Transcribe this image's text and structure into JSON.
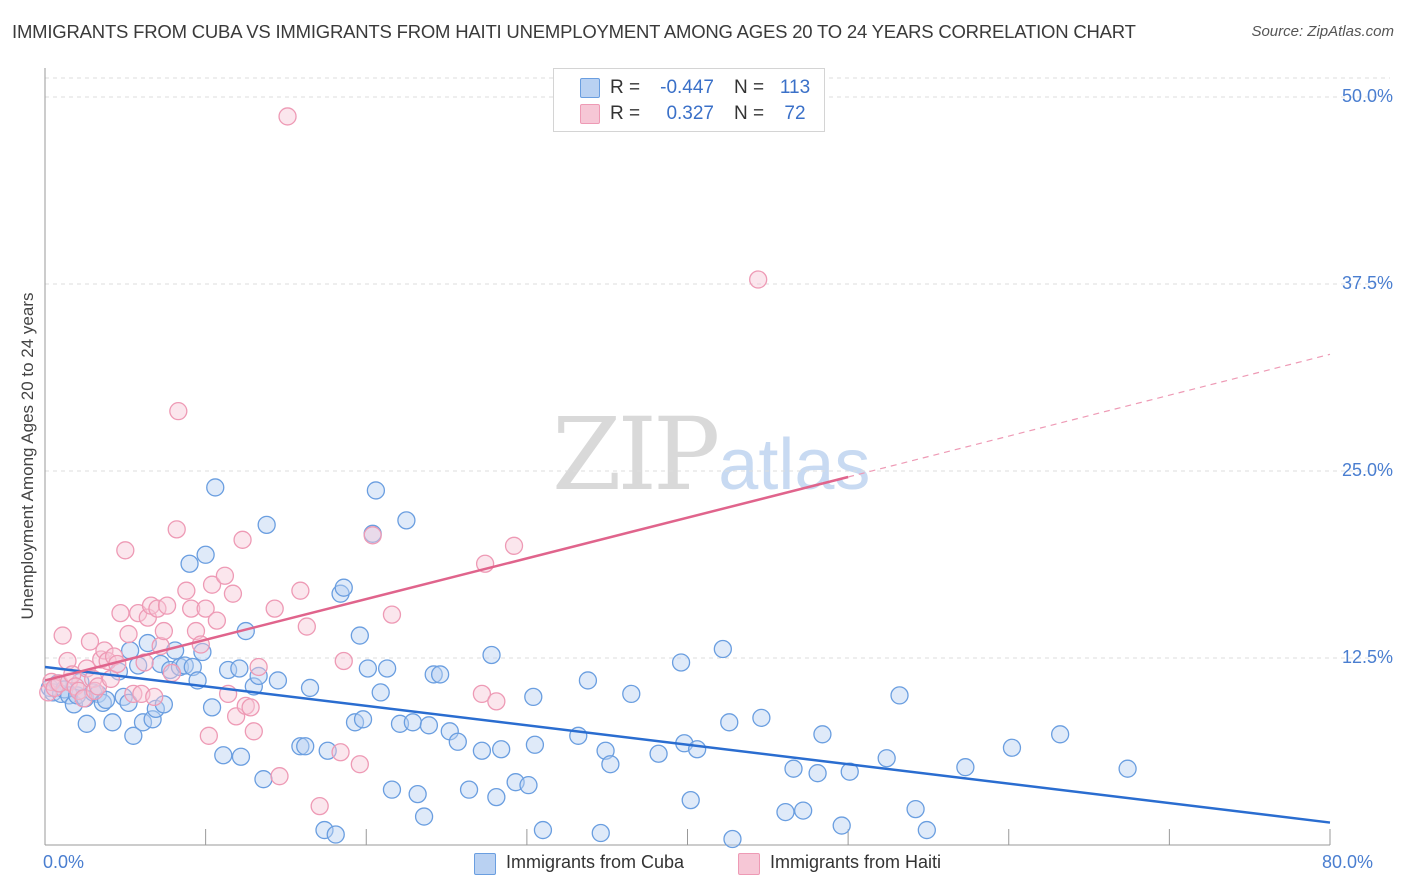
{
  "title": "IMMIGRANTS FROM CUBA VS IMMIGRANTS FROM HAITI UNEMPLOYMENT AMONG AGES 20 TO 24 YEARS CORRELATION CHART",
  "source": "Source: ZipAtlas.com",
  "watermark": {
    "zip": "ZIP",
    "atlas": "atlas"
  },
  "legend": {
    "rows": [
      {
        "r_label": "R =",
        "r_value": "-0.447",
        "n_label": "N =",
        "n_value": "113"
      },
      {
        "r_label": "R =",
        "r_value": "0.327",
        "n_label": "N =",
        "n_value": "72"
      }
    ]
  },
  "colors": {
    "cuba": "#6a9ee0",
    "cuba_fill": "#b9d1f2",
    "cuba_line": "#2a6dd0",
    "haiti": "#ee9ab5",
    "haiti_fill": "#f6c7d6",
    "haiti_line": "#e0648c",
    "tick_text": "#4a7ed0"
  },
  "chart_data": {
    "type": "scatter",
    "title": "IMMIGRANTS FROM CUBA VS IMMIGRANTS FROM HAITI UNEMPLOYMENT AMONG AGES 20 TO 24 YEARS CORRELATION CHART",
    "xlabel": "",
    "ylabel": "Unemployment Among Ages 20 to 24 years",
    "xlim": [
      0,
      80
    ],
    "ylim": [
      0,
      50
    ],
    "x_tick_labels": [
      "0.0%",
      "80.0%"
    ],
    "y_ticks": [
      12.5,
      25.0,
      37.5,
      50.0
    ],
    "y_tick_labels": [
      "12.5%",
      "25.0%",
      "37.5%",
      "50.0%"
    ],
    "grid": true,
    "legend_position": "top-center",
    "series": [
      {
        "name": "Immigrants from Cuba",
        "r": -0.447,
        "n": 113,
        "trend": {
          "x0": 0,
          "y0": 11.9,
          "x1": 80,
          "y1": 1.5
        },
        "points": [
          [
            0.3,
            10.5
          ],
          [
            0.5,
            10.2
          ],
          [
            0.8,
            10.8
          ],
          [
            1.0,
            10.1
          ],
          [
            1.2,
            10.4
          ],
          [
            1.5,
            10.0
          ],
          [
            1.8,
            9.4
          ],
          [
            2.0,
            10.0
          ],
          [
            2.2,
            10.9
          ],
          [
            2.5,
            9.8
          ],
          [
            2.6,
            8.1
          ],
          [
            3.0,
            10.2
          ],
          [
            3.3,
            10.1
          ],
          [
            3.6,
            9.5
          ],
          [
            3.8,
            9.7
          ],
          [
            4.2,
            8.2
          ],
          [
            4.6,
            11.6
          ],
          [
            4.9,
            9.9
          ],
          [
            5.2,
            9.5
          ],
          [
            5.3,
            13.0
          ],
          [
            5.5,
            7.3
          ],
          [
            5.8,
            12.0
          ],
          [
            6.1,
            8.2
          ],
          [
            6.4,
            13.5
          ],
          [
            6.7,
            8.4
          ],
          [
            6.9,
            9.1
          ],
          [
            7.2,
            12.1
          ],
          [
            7.4,
            9.4
          ],
          [
            7.8,
            11.7
          ],
          [
            8.1,
            13.0
          ],
          [
            8.4,
            11.9
          ],
          [
            8.7,
            12.0
          ],
          [
            9.0,
            18.8
          ],
          [
            9.2,
            11.9
          ],
          [
            9.5,
            11.0
          ],
          [
            9.8,
            12.9
          ],
          [
            10.0,
            19.4
          ],
          [
            10.4,
            9.2
          ],
          [
            10.6,
            23.9
          ],
          [
            11.1,
            6.0
          ],
          [
            11.4,
            11.7
          ],
          [
            12.1,
            11.8
          ],
          [
            12.2,
            5.9
          ],
          [
            12.5,
            14.3
          ],
          [
            13.0,
            10.6
          ],
          [
            13.3,
            11.3
          ],
          [
            13.6,
            4.4
          ],
          [
            13.8,
            21.4
          ],
          [
            14.5,
            11.0
          ],
          [
            15.9,
            6.6
          ],
          [
            16.2,
            6.6
          ],
          [
            16.5,
            10.5
          ],
          [
            17.4,
            1.0
          ],
          [
            17.6,
            6.3
          ],
          [
            18.1,
            0.7
          ],
          [
            18.4,
            16.8
          ],
          [
            18.6,
            17.2
          ],
          [
            19.3,
            8.2
          ],
          [
            19.6,
            14.0
          ],
          [
            19.8,
            8.4
          ],
          [
            20.1,
            11.8
          ],
          [
            20.4,
            20.8
          ],
          [
            20.6,
            23.7
          ],
          [
            20.9,
            10.2
          ],
          [
            21.3,
            11.8
          ],
          [
            21.6,
            3.7
          ],
          [
            22.1,
            8.1
          ],
          [
            22.5,
            21.7
          ],
          [
            22.9,
            8.2
          ],
          [
            23.2,
            3.4
          ],
          [
            23.6,
            1.9
          ],
          [
            23.9,
            8.0
          ],
          [
            24.2,
            11.4
          ],
          [
            24.6,
            11.4
          ],
          [
            25.2,
            7.6
          ],
          [
            25.7,
            6.9
          ],
          [
            26.4,
            3.7
          ],
          [
            27.2,
            6.3
          ],
          [
            27.8,
            12.7
          ],
          [
            28.1,
            3.2
          ],
          [
            28.4,
            6.4
          ],
          [
            29.3,
            4.2
          ],
          [
            30.1,
            4.0
          ],
          [
            30.4,
            9.9
          ],
          [
            30.5,
            6.7
          ],
          [
            31.0,
            1.0
          ],
          [
            33.2,
            7.3
          ],
          [
            33.8,
            11.0
          ],
          [
            34.6,
            0.8
          ],
          [
            34.9,
            6.3
          ],
          [
            35.2,
            5.4
          ],
          [
            36.5,
            10.1
          ],
          [
            38.2,
            6.1
          ],
          [
            39.6,
            12.2
          ],
          [
            39.8,
            6.8
          ],
          [
            40.2,
            3.0
          ],
          [
            40.6,
            6.4
          ],
          [
            42.2,
            13.1
          ],
          [
            42.6,
            8.2
          ],
          [
            42.8,
            0.4
          ],
          [
            44.6,
            8.5
          ],
          [
            46.1,
            2.2
          ],
          [
            46.6,
            5.1
          ],
          [
            47.2,
            2.3
          ],
          [
            48.1,
            4.8
          ],
          [
            48.4,
            7.4
          ],
          [
            49.6,
            1.3
          ],
          [
            50.1,
            4.9
          ],
          [
            52.4,
            5.8
          ],
          [
            53.2,
            10.0
          ],
          [
            54.2,
            2.4
          ],
          [
            54.9,
            1.0
          ],
          [
            57.3,
            5.2
          ],
          [
            60.2,
            6.5
          ],
          [
            63.2,
            7.4
          ],
          [
            67.4,
            5.1
          ]
        ]
      },
      {
        "name": "Immigrants from Haiti",
        "r": 0.327,
        "n": 72,
        "trend_solid": {
          "x0": 0,
          "y0": 11.0,
          "x1": 50,
          "y1": 24.6
        },
        "trend_dashed": {
          "x0": 50,
          "y0": 24.6,
          "x1": 80,
          "y1": 32.8
        },
        "points": [
          [
            0.2,
            10.2
          ],
          [
            0.4,
            10.9
          ],
          [
            0.6,
            10.5
          ],
          [
            0.9,
            10.8
          ],
          [
            1.1,
            14.0
          ],
          [
            1.4,
            12.3
          ],
          [
            1.5,
            10.9
          ],
          [
            1.7,
            11.4
          ],
          [
            1.9,
            10.6
          ],
          [
            2.1,
            10.3
          ],
          [
            2.4,
            9.8
          ],
          [
            2.6,
            11.8
          ],
          [
            2.8,
            13.6
          ],
          [
            3.0,
            11.1
          ],
          [
            3.1,
            10.3
          ],
          [
            3.3,
            10.6
          ],
          [
            3.5,
            12.4
          ],
          [
            3.7,
            13.0
          ],
          [
            3.9,
            12.3
          ],
          [
            4.1,
            11.1
          ],
          [
            4.3,
            12.6
          ],
          [
            4.5,
            12.1
          ],
          [
            4.7,
            15.5
          ],
          [
            5.0,
            19.7
          ],
          [
            5.2,
            14.1
          ],
          [
            5.5,
            10.1
          ],
          [
            5.8,
            15.5
          ],
          [
            6.0,
            10.1
          ],
          [
            6.2,
            12.2
          ],
          [
            6.4,
            15.2
          ],
          [
            6.6,
            16.0
          ],
          [
            6.8,
            9.9
          ],
          [
            7.0,
            15.8
          ],
          [
            7.2,
            13.3
          ],
          [
            7.4,
            14.3
          ],
          [
            7.6,
            16.0
          ],
          [
            7.9,
            11.5
          ],
          [
            8.2,
            21.1
          ],
          [
            8.3,
            29.0
          ],
          [
            8.8,
            17.0
          ],
          [
            9.1,
            15.8
          ],
          [
            9.4,
            14.3
          ],
          [
            9.7,
            13.4
          ],
          [
            10.0,
            15.8
          ],
          [
            10.2,
            7.3
          ],
          [
            10.4,
            17.4
          ],
          [
            10.7,
            15.0
          ],
          [
            11.2,
            18.0
          ],
          [
            11.4,
            10.1
          ],
          [
            11.7,
            16.8
          ],
          [
            11.9,
            8.6
          ],
          [
            12.3,
            20.4
          ],
          [
            12.5,
            9.3
          ],
          [
            12.8,
            9.2
          ],
          [
            13.0,
            7.6
          ],
          [
            13.3,
            11.9
          ],
          [
            14.3,
            15.8
          ],
          [
            14.6,
            4.6
          ],
          [
            15.1,
            48.7
          ],
          [
            15.9,
            17.0
          ],
          [
            16.3,
            14.6
          ],
          [
            17.1,
            2.6
          ],
          [
            18.4,
            6.2
          ],
          [
            18.6,
            12.3
          ],
          [
            19.6,
            5.4
          ],
          [
            20.4,
            20.7
          ],
          [
            21.6,
            15.4
          ],
          [
            27.2,
            10.1
          ],
          [
            27.4,
            18.8
          ],
          [
            28.1,
            9.6
          ],
          [
            29.2,
            20.0
          ],
          [
            44.4,
            37.8
          ]
        ]
      }
    ]
  },
  "bottom_legend": {
    "cuba": "Immigrants from Cuba",
    "haiti": "Immigrants from Haiti"
  }
}
